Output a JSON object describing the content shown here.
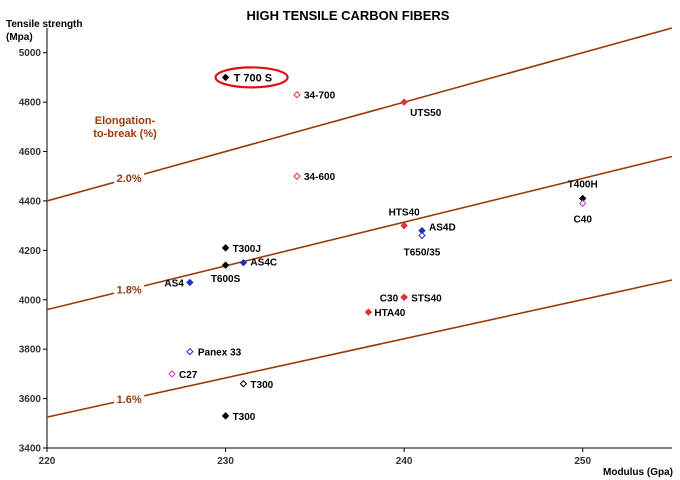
{
  "chart_data": {
    "type": "scatter",
    "title": "HIGH TENSILE CARBON FIBERS",
    "xlabel": "Modulus (Gpa)",
    "ylabel_lines": [
      "Tensile strength",
      "(Mpa)"
    ],
    "xlim": [
      220,
      255
    ],
    "ylim": [
      3400,
      5100
    ],
    "x_ticks": [
      "220",
      "230",
      "240",
      "250"
    ],
    "y_ticks": [
      "3400",
      "3600",
      "3800",
      "4000",
      "4200",
      "4400",
      "4600",
      "4800",
      "5000"
    ],
    "annotation_lines": [
      "Elongation-",
      "to-break (%)"
    ],
    "reference_lines": [
      {
        "label": "2.0%",
        "x1": 220,
        "y1": 4400,
        "x2": 255,
        "y2": 5100
      },
      {
        "label": "1.8%",
        "x1": 220,
        "y1": 3960,
        "x2": 255,
        "y2": 4580
      },
      {
        "label": "1.6%",
        "x1": 220,
        "y1": 3525,
        "x2": 255,
        "y2": 4080
      }
    ],
    "points": [
      {
        "label": "T 700 S",
        "x": 230,
        "y": 4900,
        "color": "#000000",
        "filled": true,
        "highlight": true
      },
      {
        "label": "34-700",
        "x": 234,
        "y": 4830,
        "color": "#e03030",
        "filled": false
      },
      {
        "label": "UTS50",
        "x": 240,
        "y": 4800,
        "color": "#e03030",
        "filled": true
      },
      {
        "label": "34-600",
        "x": 234,
        "y": 4500,
        "color": "#e03030",
        "filled": false
      },
      {
        "label": "T400H",
        "x": 250,
        "y": 4410,
        "color": "#000000",
        "filled": true
      },
      {
        "label": "C40",
        "x": 250,
        "y": 4390,
        "color": "#c040c0",
        "filled": false
      },
      {
        "label": "HTS40",
        "x": 240,
        "y": 4300,
        "color": "#e03030",
        "filled": true
      },
      {
        "label": "AS4D",
        "x": 241,
        "y": 4280,
        "color": "#2030d0",
        "filled": true
      },
      {
        "label": "T650/35",
        "x": 241,
        "y": 4260,
        "color": "#2030d0",
        "filled": false
      },
      {
        "label": "T300J",
        "x": 230,
        "y": 4210,
        "color": "#000000",
        "filled": true
      },
      {
        "label": "AS4C",
        "x": 231,
        "y": 4150,
        "color": "#2030d0",
        "filled": true
      },
      {
        "label": "T600S",
        "x": 230,
        "y": 4140,
        "color": "#000000",
        "filled": true
      },
      {
        "label": "AS4",
        "x": 228,
        "y": 4070,
        "color": "#2030d0",
        "filled": true
      },
      {
        "label": "C30",
        "x": 240,
        "y": 4010,
        "color": "#c040c0",
        "filled": false
      },
      {
        "label": "STS40",
        "x": 240,
        "y": 4010,
        "color": "#e03030",
        "filled": true
      },
      {
        "label": "HTA40",
        "x": 238,
        "y": 3950,
        "color": "#e03030",
        "filled": true
      },
      {
        "label": "Panex 33",
        "x": 228,
        "y": 3790,
        "color": "#2030d0",
        "filled": false
      },
      {
        "label": "C27",
        "x": 227,
        "y": 3700,
        "color": "#c040c0",
        "filled": false
      },
      {
        "label": "T300",
        "x": 231,
        "y": 3660,
        "color": "#000000",
        "filled": false
      },
      {
        "label": "T300",
        "x": 230,
        "y": 3530,
        "color": "#000000",
        "filled": true
      }
    ],
    "grid": false,
    "colors": {
      "reference_line": "#9a3a0a",
      "highlight_ring": "#e01010",
      "axis": "#000000"
    }
  }
}
